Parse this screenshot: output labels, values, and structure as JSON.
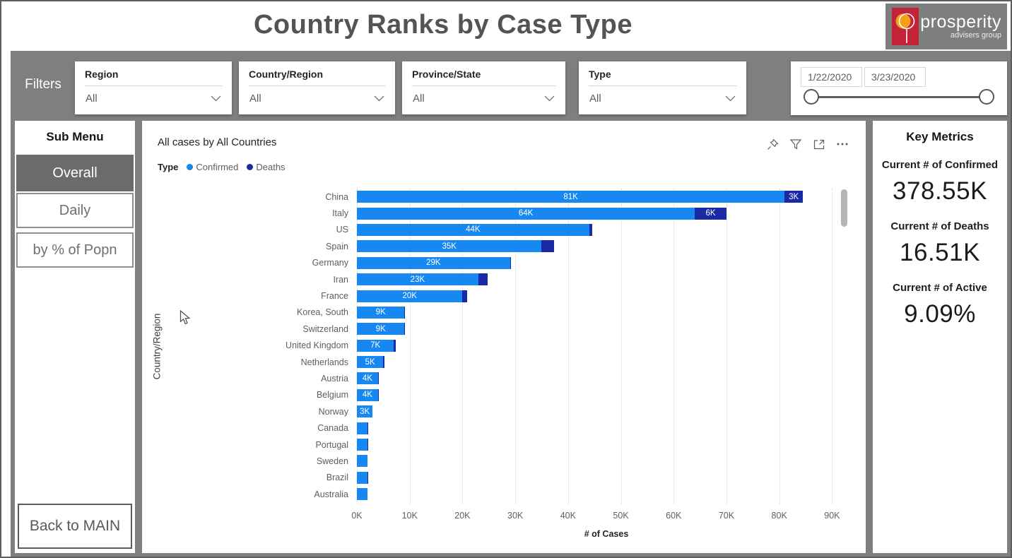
{
  "header": {
    "title": "Country Ranks by Case Type",
    "logo": {
      "brand": "prosperity",
      "tagline": "advisers group",
      "mark_color": "#c32339",
      "accent_color": "#f6a01a"
    }
  },
  "filters": {
    "label": "Filters",
    "dropdowns": [
      {
        "label": "Region",
        "value": "All"
      },
      {
        "label": "Country/Region",
        "value": "All"
      },
      {
        "label": "Province/State",
        "value": "All"
      },
      {
        "label": "Type",
        "value": "All"
      }
    ],
    "date_range": {
      "start": "1/22/2020",
      "end": "3/23/2020"
    }
  },
  "sidebar": {
    "title": "Sub Menu",
    "items": [
      {
        "label": "Overall",
        "selected": true
      },
      {
        "label": "Daily",
        "selected": false
      },
      {
        "label": "by % of Popn",
        "selected": false
      }
    ],
    "back_label": "Back to MAIN"
  },
  "chart": {
    "title": "All cases by All Countries",
    "icons": [
      "pin-icon",
      "filter-icon",
      "focus-mode-icon",
      "more-options-icon"
    ]
  },
  "chart_data": {
    "type": "bar",
    "orientation": "horizontal",
    "stacked": true,
    "title": "All cases by All Countries",
    "xlabel": "# of Cases",
    "ylabel": "Country/Region",
    "xlim": [
      0,
      94500
    ],
    "xtick_step": 10000,
    "xticks": [
      "0K",
      "10K",
      "20K",
      "30K",
      "40K",
      "50K",
      "60K",
      "70K",
      "80K",
      "90K"
    ],
    "grid": "dotted-vertical",
    "legend_title": "Type",
    "legend_position": "top-left",
    "categories": [
      "China",
      "Italy",
      "US",
      "Spain",
      "Germany",
      "Iran",
      "France",
      "Korea, South",
      "Switzerland",
      "United Kingdom",
      "Netherlands",
      "Austria",
      "Belgium",
      "Norway",
      "Canada",
      "Portugal",
      "Sweden",
      "Brazil",
      "Australia"
    ],
    "series": [
      {
        "name": "Confirmed",
        "color": "#1787F2",
        "values": [
          81000,
          64000,
          44000,
          35000,
          29000,
          23000,
          20000,
          9000,
          9000,
          7000,
          5000,
          4000,
          4000,
          3000,
          2000,
          2000,
          2000,
          2000,
          2000
        ],
        "labels": [
          "81K",
          "64K",
          "44K",
          "35K",
          "29K",
          "23K",
          "20K",
          "9K",
          "9K",
          "7K",
          "5K",
          "4K",
          "4K",
          "3K",
          "",
          "",
          "",
          "",
          ""
        ]
      },
      {
        "name": "Deaths",
        "color": "#1A2AA5",
        "values": [
          3200,
          6000,
          550,
          2300,
          150,
          1800,
          900,
          110,
          120,
          340,
          210,
          30,
          90,
          10,
          25,
          15,
          10,
          25,
          10
        ],
        "labels": [
          "3K",
          "6K",
          "",
          "",
          "",
          "",
          "",
          "",
          "",
          "",
          "",
          "",
          "",
          "",
          "",
          "",
          "",
          "",
          ""
        ]
      }
    ]
  },
  "metrics": {
    "title": "Key Metrics",
    "items": [
      {
        "label": "Current # of Confirmed",
        "value": "378.55K"
      },
      {
        "label": "Current # of Deaths",
        "value": "16.51K"
      },
      {
        "label": "Current # of Active",
        "value": "9.09%"
      }
    ]
  }
}
